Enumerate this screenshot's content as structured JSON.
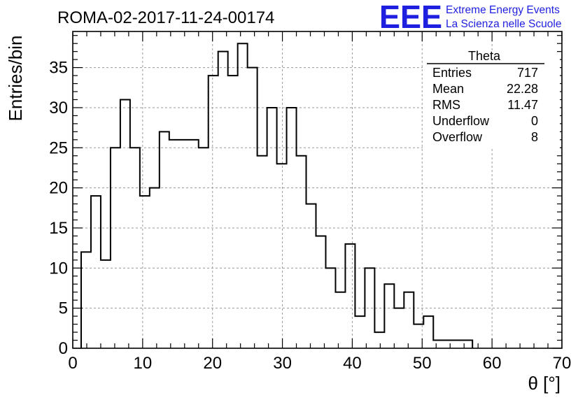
{
  "header": {
    "run_title": "ROMA-02-2017-11-24-00174",
    "logo_text": "EEE",
    "logo_line1": "Extreme Energy Events",
    "logo_line2": "La Scienza nelle Scuole",
    "logo_color": "#1f1fe0"
  },
  "stats": {
    "name": "Theta",
    "rows": [
      {
        "label": "Entries",
        "value": "717"
      },
      {
        "label": "Mean",
        "value": "22.28"
      },
      {
        "label": "RMS",
        "value": "11.47"
      },
      {
        "label": "Underflow",
        "value": "0"
      },
      {
        "label": "Overflow",
        "value": "8"
      }
    ]
  },
  "chart_data": {
    "type": "bar",
    "style": "step-histogram",
    "title": "ROMA-02-2017-11-24-00174",
    "xlabel": "θ [°]",
    "ylabel": "Entries/bin",
    "xlim": [
      0,
      70
    ],
    "ylim": [
      0,
      39.5
    ],
    "xticks": [
      0,
      10,
      20,
      30,
      40,
      50,
      60,
      70
    ],
    "yticks": [
      0,
      5,
      10,
      15,
      20,
      25,
      30,
      35
    ],
    "grid": true,
    "bin_start": 1.2,
    "bin_width": 1.4,
    "values": [
      12,
      19,
      11,
      25,
      31,
      25,
      19,
      20,
      27,
      26,
      26,
      26,
      25,
      34,
      37,
      34,
      38,
      35,
      24,
      30,
      23,
      30,
      24,
      18,
      14,
      10,
      7,
      13,
      4,
      10,
      2,
      8,
      5,
      7,
      3,
      4,
      1,
      1,
      1,
      1
    ]
  }
}
